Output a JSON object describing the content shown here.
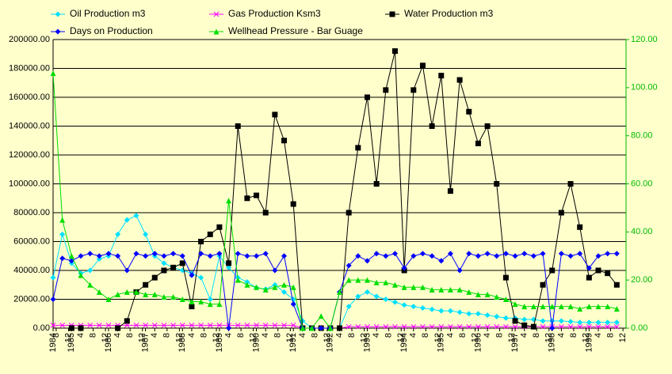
{
  "chart_data": {
    "type": "line",
    "x": [
      1984.5,
      1984.75,
      1985,
      1985.25,
      1985.5,
      1985.75,
      1986,
      1986.25,
      1986.5,
      1986.75,
      1987,
      1987.25,
      1987.5,
      1987.75,
      1988,
      1988.25,
      1988.5,
      1988.75,
      1989,
      1989.25,
      1989.5,
      1989.75,
      1990,
      1990.25,
      1990.5,
      1990.75,
      1991,
      1991.25,
      1991.5,
      1991.75,
      1992,
      1992.25,
      1992.5,
      1992.75,
      1993,
      1993.25,
      1993.5,
      1993.75,
      1994,
      1994.25,
      1994.5,
      1994.75,
      1995,
      1995.25,
      1995.5,
      1995.75,
      1996,
      1996.25,
      1996.5,
      1996.75,
      1997,
      1997.25,
      1997.5,
      1997.75,
      1998,
      1998.25,
      1998.5,
      1998.75,
      1999,
      1999.25,
      1999.5,
      1999.75
    ],
    "series": [
      {
        "name": "Oil Production m3",
        "color": "#00e0ff",
        "marker": "diamond",
        "values": [
          35000,
          65000,
          45000,
          38000,
          40000,
          48000,
          50000,
          65000,
          75000,
          78000,
          65000,
          50000,
          45000,
          42000,
          40000,
          38000,
          35000,
          20000,
          50000,
          42000,
          35000,
          32000,
          28000,
          27000,
          30000,
          25000,
          20000,
          5000,
          0,
          0,
          0,
          0,
          15000,
          22000,
          25000,
          22000,
          20000,
          18000,
          16000,
          15000,
          14000,
          13000,
          12000,
          12000,
          11000,
          10000,
          10000,
          9000,
          8000,
          7000,
          7000,
          6000,
          6000,
          5000,
          5000,
          5000,
          4500,
          4000,
          4000,
          4000,
          4000,
          4000
        ]
      },
      {
        "name": "Gas Production Ksm3",
        "color": "#ff00ff",
        "marker": "x",
        "values": [
          2000,
          2000,
          2000,
          2000,
          2000,
          2000,
          2000,
          2000,
          2000,
          2000,
          2000,
          2000,
          2000,
          2000,
          2000,
          2000,
          2000,
          2000,
          2000,
          2000,
          2000,
          2000,
          2000,
          2000,
          2000,
          2000,
          2000,
          0,
          0,
          0,
          0,
          0,
          1000,
          1000,
          1000,
          1000,
          1000,
          1000,
          1000,
          1000,
          1000,
          1000,
          1000,
          1000,
          1000,
          1000,
          1000,
          1000,
          1000,
          1000,
          1000,
          1000,
          1000,
          1000,
          1000,
          1000,
          1000,
          1000,
          1000,
          1000,
          1000,
          1000
        ]
      },
      {
        "name": "Water Production m3",
        "color": "#000000",
        "marker": "square",
        "values": [
          null,
          null,
          0,
          0,
          null,
          null,
          null,
          0,
          5000,
          25000,
          30000,
          35000,
          40000,
          42000,
          45000,
          15000,
          60000,
          65000,
          70000,
          45000,
          140000,
          90000,
          92000,
          80000,
          148000,
          130000,
          86000,
          0,
          0,
          0,
          0,
          0,
          80000,
          125000,
          160000,
          100000,
          165000,
          192000,
          40000,
          165000,
          182000,
          140000,
          175000,
          95000,
          172000,
          150000,
          128000,
          140000,
          100000,
          35000,
          5000,
          2000,
          1000,
          30000,
          40000,
          80000,
          100000,
          70000,
          35000,
          40000,
          38000,
          30000
        ]
      },
      {
        "name": "Days on Production",
        "color": "#0000ff",
        "marker": "diamond",
        "axis": "y2",
        "values": [
          12,
          29,
          28,
          30,
          31,
          30,
          31,
          30,
          24,
          31,
          30,
          31,
          30,
          31,
          30,
          22,
          31,
          30,
          31,
          0,
          31,
          30,
          30,
          31,
          24,
          30,
          10,
          0,
          0,
          0,
          0,
          15,
          26,
          30,
          28,
          31,
          30,
          31,
          25,
          30,
          31,
          30,
          28,
          31,
          24,
          31,
          30,
          31,
          30,
          31,
          30,
          31,
          30,
          31,
          0,
          31,
          30,
          31,
          25,
          30,
          31,
          31
        ]
      },
      {
        "name": "Wellhead Pressure - Bar Guage",
        "color": "#00dd00",
        "marker": "triangle",
        "axis": "y2",
        "values": [
          106,
          45,
          30,
          22,
          18,
          15,
          12,
          14,
          15,
          15,
          14,
          14,
          13,
          13,
          12,
          11,
          11,
          10,
          10,
          53,
          20,
          18,
          17,
          16,
          17,
          18,
          17,
          0,
          0,
          5,
          0,
          15,
          20,
          20,
          20,
          19,
          19,
          18,
          17,
          17,
          17,
          16,
          16,
          16,
          16,
          15,
          14,
          14,
          13,
          12,
          10,
          9,
          9,
          9,
          9,
          9,
          9,
          8,
          9,
          9,
          9,
          8
        ]
      }
    ],
    "xlim": [
      1984.5,
      2000
    ],
    "xticks": [
      {
        "value": 1984.5,
        "label": "1984"
      },
      {
        "value": 1984.583,
        "label": "8"
      },
      {
        "value": 1984.917,
        "label": "12"
      },
      1985,
      {
        "value": 1985.25,
        "label": "4"
      },
      {
        "value": 1985.583,
        "label": "8"
      },
      {
        "value": 1985.917,
        "label": "12"
      },
      1986,
      {
        "value": 1986.25,
        "label": "4"
      },
      {
        "value": 1986.583,
        "label": "8"
      },
      {
        "value": 1986.917,
        "label": "12"
      },
      1987,
      {
        "value": 1987.25,
        "label": "4"
      },
      {
        "value": 1987.583,
        "label": "8"
      },
      {
        "value": 1987.917,
        "label": "12"
      },
      1988,
      {
        "value": 1988.25,
        "label": "4"
      },
      {
        "value": 1988.583,
        "label": "8"
      },
      {
        "value": 1988.917,
        "label": "12"
      },
      1989,
      {
        "value": 1989.25,
        "label": "4"
      },
      {
        "value": 1989.583,
        "label": "8"
      },
      {
        "value": 1989.917,
        "label": "12"
      },
      1990,
      {
        "value": 1990.25,
        "label": "4"
      },
      {
        "value": 1990.583,
        "label": "8"
      },
      {
        "value": 1990.917,
        "label": "12"
      },
      1991,
      {
        "value": 1991.25,
        "label": "4"
      },
      {
        "value": 1991.583,
        "label": "8"
      },
      {
        "value": 1991.917,
        "label": "12"
      },
      1992,
      {
        "value": 1992.25,
        "label": "4"
      },
      {
        "value": 1992.583,
        "label": "8"
      },
      {
        "value": 1992.917,
        "label": "12"
      },
      1993,
      {
        "value": 1993.25,
        "label": "4"
      },
      {
        "value": 1993.583,
        "label": "8"
      },
      {
        "value": 1993.917,
        "label": "12"
      },
      1994,
      {
        "value": 1994.25,
        "label": "4"
      },
      {
        "value": 1994.583,
        "label": "8"
      },
      {
        "value": 1994.917,
        "label": "12"
      },
      1995,
      {
        "value": 1995.25,
        "label": "4"
      },
      {
        "value": 1995.583,
        "label": "8"
      },
      {
        "value": 1995.917,
        "label": "12"
      },
      1996,
      {
        "value": 1996.25,
        "label": "4"
      },
      {
        "value": 1996.583,
        "label": "8"
      },
      {
        "value": 1996.917,
        "label": "12"
      },
      1997,
      {
        "value": 1997.25,
        "label": "4"
      },
      {
        "value": 1997.583,
        "label": "8"
      },
      {
        "value": 1997.917,
        "label": "12"
      },
      1998,
      {
        "value": 1998.25,
        "label": "4"
      },
      {
        "value": 1998.583,
        "label": "8"
      },
      {
        "value": 1998.917,
        "label": "12"
      },
      1999,
      {
        "value": 1999.25,
        "label": "4"
      },
      {
        "value": 1999.583,
        "label": "8"
      },
      {
        "value": 1999.917,
        "label": "12"
      }
    ],
    "ylim": [
      0,
      200000
    ],
    "yticks": [
      {
        "value": 0,
        "label": "0.00"
      },
      {
        "value": 20000,
        "label": "20000.00"
      },
      {
        "value": 40000,
        "label": "40000.00"
      },
      {
        "value": 60000,
        "label": "60000.00"
      },
      {
        "value": 80000,
        "label": "80000.00"
      },
      {
        "value": 100000,
        "label": "100000.00"
      },
      {
        "value": 120000,
        "label": "120000.00"
      },
      {
        "value": 140000,
        "label": "140000.00"
      },
      {
        "value": 160000,
        "label": "160000.00"
      },
      {
        "value": 180000,
        "label": "180000.00"
      },
      {
        "value": 200000,
        "label": "200000.00"
      }
    ],
    "y2lim": [
      0,
      120
    ],
    "y2ticks": [
      {
        "value": 0,
        "label": "0.00"
      },
      {
        "value": 20,
        "label": "20.00"
      },
      {
        "value": 40,
        "label": "40.00"
      },
      {
        "value": 60,
        "label": "60.00"
      },
      {
        "value": 80,
        "label": "80.00"
      },
      {
        "value": 100,
        "label": "100.00"
      },
      {
        "value": 120,
        "label": "120.00"
      }
    ],
    "y2color": "#00bb00",
    "grid": true
  }
}
